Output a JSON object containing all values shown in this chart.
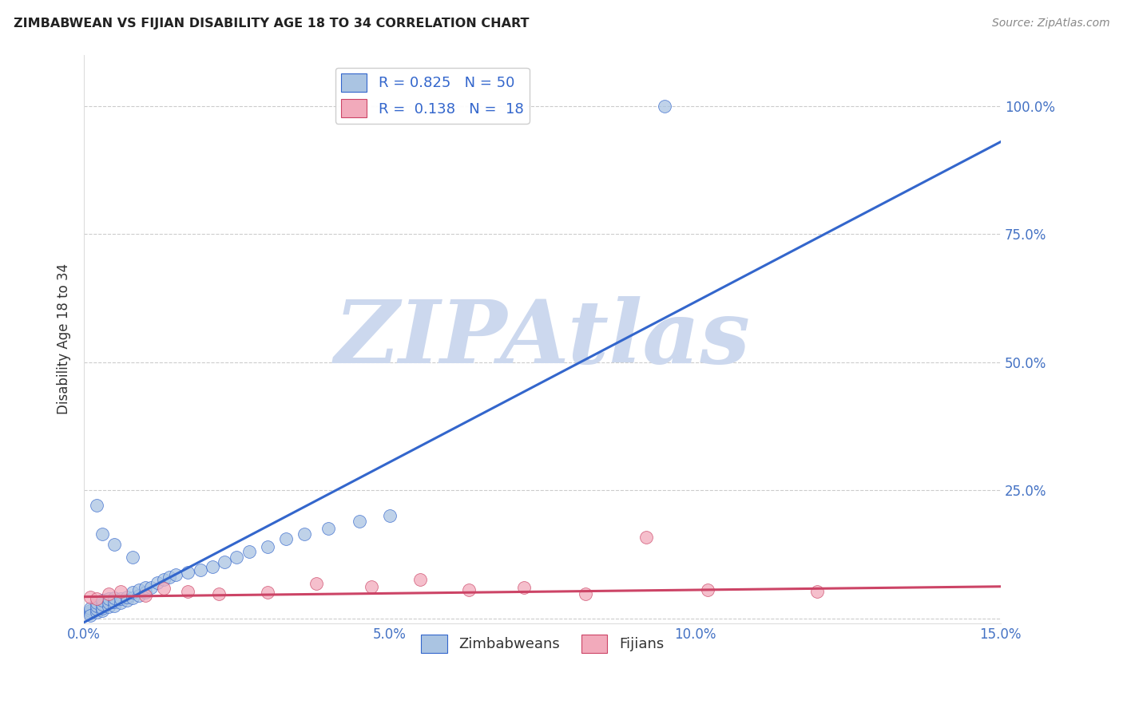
{
  "title": "ZIMBABWEAN VS FIJIAN DISABILITY AGE 18 TO 34 CORRELATION CHART",
  "source": "Source: ZipAtlas.com",
  "ylabel_label": "Disability Age 18 to 34",
  "xlim": [
    0.0,
    0.15
  ],
  "ylim": [
    -0.01,
    1.1
  ],
  "xticks": [
    0.0,
    0.05,
    0.1,
    0.15
  ],
  "xticklabels": [
    "0.0%",
    "5.0%",
    "10.0%",
    "15.0%"
  ],
  "right_yticks": [
    0.25,
    0.5,
    0.75,
    1.0
  ],
  "right_yticklabels": [
    "25.0%",
    "50.0%",
    "75.0%",
    "100.0%"
  ],
  "zimbabwe_color": "#aac4e2",
  "fijian_color": "#f2aabb",
  "zimbabwe_line_color": "#3366cc",
  "fijian_line_color": "#cc4466",
  "R_zimbabwe": 0.825,
  "N_zimbabwe": 50,
  "R_fijian": 0.138,
  "N_fijian": 18,
  "watermark": "ZIPAtlas",
  "watermark_color": "#ccd8ee",
  "legend_label_zimbabwe": "Zimbabweans",
  "legend_label_fijian": "Fijians",
  "zim_line_x0": 0.0,
  "zim_line_y0": -0.008,
  "zim_line_x1": 0.15,
  "zim_line_y1": 0.93,
  "fij_line_x0": 0.0,
  "fij_line_y0": 0.042,
  "fij_line_x1": 0.15,
  "fij_line_y1": 0.062,
  "zim_x": [
    0.001,
    0.001,
    0.001,
    0.001,
    0.002,
    0.002,
    0.002,
    0.002,
    0.003,
    0.003,
    0.003,
    0.003,
    0.004,
    0.004,
    0.004,
    0.005,
    0.005,
    0.005,
    0.006,
    0.006,
    0.007,
    0.007,
    0.008,
    0.008,
    0.009,
    0.009,
    0.01,
    0.01,
    0.011,
    0.012,
    0.013,
    0.014,
    0.015,
    0.017,
    0.019,
    0.021,
    0.023,
    0.025,
    0.027,
    0.03,
    0.033,
    0.036,
    0.04,
    0.045,
    0.05,
    0.002,
    0.003,
    0.005,
    0.008,
    0.095
  ],
  "zim_y": [
    0.01,
    0.015,
    0.02,
    0.005,
    0.012,
    0.018,
    0.025,
    0.03,
    0.015,
    0.02,
    0.028,
    0.035,
    0.022,
    0.03,
    0.038,
    0.025,
    0.032,
    0.04,
    0.03,
    0.038,
    0.035,
    0.042,
    0.04,
    0.05,
    0.045,
    0.055,
    0.05,
    0.06,
    0.06,
    0.07,
    0.075,
    0.08,
    0.085,
    0.09,
    0.095,
    0.1,
    0.11,
    0.12,
    0.13,
    0.14,
    0.155,
    0.165,
    0.175,
    0.19,
    0.2,
    0.22,
    0.165,
    0.145,
    0.12,
    1.0
  ],
  "fij_x": [
    0.001,
    0.002,
    0.004,
    0.006,
    0.01,
    0.013,
    0.017,
    0.022,
    0.03,
    0.038,
    0.047,
    0.055,
    0.063,
    0.072,
    0.082,
    0.092,
    0.102,
    0.12
  ],
  "fij_y": [
    0.042,
    0.038,
    0.048,
    0.052,
    0.045,
    0.058,
    0.052,
    0.048,
    0.05,
    0.068,
    0.062,
    0.075,
    0.055,
    0.06,
    0.048,
    0.158,
    0.055,
    0.052
  ]
}
